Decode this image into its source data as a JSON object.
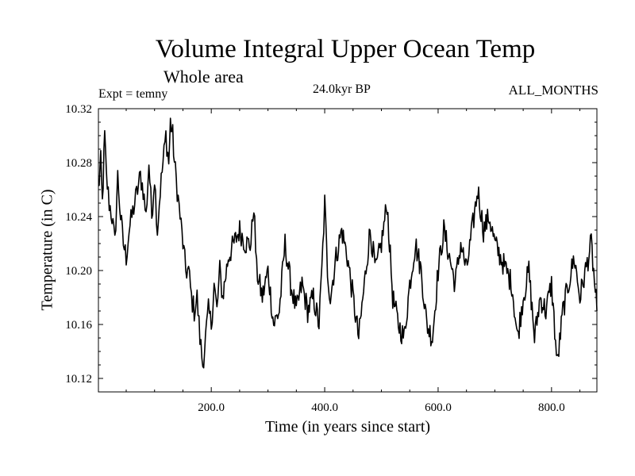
{
  "chart_data": {
    "type": "line",
    "title": "Volume Integral Upper Ocean Temp",
    "subtitle": "Whole area",
    "expt_label": "Expt = temny",
    "period_label": "24.0kyr BP",
    "months_label": "ALL_MONTHS",
    "xlabel": "Time (in years since start)",
    "ylabel": "Temperature (in C)",
    "xlim": [
      1,
      880
    ],
    "ylim": [
      10.11,
      10.32
    ],
    "xticks": [
      200,
      400,
      600,
      800
    ],
    "xtick_labels": [
      "200.0",
      "400.0",
      "600.0",
      "800.0"
    ],
    "yticks": [
      10.12,
      10.16,
      10.2,
      10.24,
      10.28,
      10.32
    ],
    "ytick_labels": [
      "10.12",
      "10.16",
      "10.20",
      "10.24",
      "10.28",
      "10.32"
    ],
    "line_color": "#000000",
    "anchors": [
      [
        1,
        10.26
      ],
      [
        5,
        10.28
      ],
      [
        8,
        10.25
      ],
      [
        12,
        10.3
      ],
      [
        15,
        10.27
      ],
      [
        20,
        10.25
      ],
      [
        25,
        10.24
      ],
      [
        30,
        10.22
      ],
      [
        35,
        10.27
      ],
      [
        40,
        10.24
      ],
      [
        45,
        10.22
      ],
      [
        50,
        10.21
      ],
      [
        55,
        10.23
      ],
      [
        60,
        10.24
      ],
      [
        65,
        10.25
      ],
      [
        70,
        10.26
      ],
      [
        75,
        10.27
      ],
      [
        80,
        10.26
      ],
      [
        85,
        10.24
      ],
      [
        90,
        10.28
      ],
      [
        95,
        10.24
      ],
      [
        100,
        10.27
      ],
      [
        105,
        10.23
      ],
      [
        110,
        10.26
      ],
      [
        115,
        10.28
      ],
      [
        120,
        10.3
      ],
      [
        125,
        10.28
      ],
      [
        128,
        10.31
      ],
      [
        132,
        10.3
      ],
      [
        135,
        10.28
      ],
      [
        140,
        10.26
      ],
      [
        145,
        10.24
      ],
      [
        150,
        10.22
      ],
      [
        155,
        10.2
      ],
      [
        160,
        10.2
      ],
      [
        165,
        10.18
      ],
      [
        170,
        10.17
      ],
      [
        175,
        10.18
      ],
      [
        180,
        10.15
      ],
      [
        185,
        10.13
      ],
      [
        190,
        10.15
      ],
      [
        195,
        10.17
      ],
      [
        200,
        10.16
      ],
      [
        205,
        10.19
      ],
      [
        210,
        10.17
      ],
      [
        215,
        10.2
      ],
      [
        220,
        10.18
      ],
      [
        230,
        10.21
      ],
      [
        240,
        10.22
      ],
      [
        250,
        10.23
      ],
      [
        260,
        10.22
      ],
      [
        270,
        10.22
      ],
      [
        275,
        10.25
      ],
      [
        280,
        10.2
      ],
      [
        290,
        10.18
      ],
      [
        300,
        10.2
      ],
      [
        310,
        10.16
      ],
      [
        320,
        10.17
      ],
      [
        330,
        10.22
      ],
      [
        340,
        10.19
      ],
      [
        350,
        10.17
      ],
      [
        360,
        10.19
      ],
      [
        370,
        10.17
      ],
      [
        380,
        10.18
      ],
      [
        390,
        10.16
      ],
      [
        395,
        10.2
      ],
      [
        400,
        10.25
      ],
      [
        405,
        10.2
      ],
      [
        410,
        10.18
      ],
      [
        420,
        10.21
      ],
      [
        430,
        10.23
      ],
      [
        440,
        10.21
      ],
      [
        450,
        10.18
      ],
      [
        460,
        10.15
      ],
      [
        470,
        10.19
      ],
      [
        480,
        10.23
      ],
      [
        490,
        10.2
      ],
      [
        500,
        10.22
      ],
      [
        510,
        10.25
      ],
      [
        520,
        10.18
      ],
      [
        530,
        10.16
      ],
      [
        540,
        10.15
      ],
      [
        550,
        10.19
      ],
      [
        560,
        10.22
      ],
      [
        570,
        10.2
      ],
      [
        580,
        10.16
      ],
      [
        590,
        10.15
      ],
      [
        600,
        10.2
      ],
      [
        610,
        10.23
      ],
      [
        620,
        10.21
      ],
      [
        630,
        10.19
      ],
      [
        640,
        10.22
      ],
      [
        650,
        10.2
      ],
      [
        660,
        10.23
      ],
      [
        670,
        10.26
      ],
      [
        680,
        10.23
      ],
      [
        690,
        10.24
      ],
      [
        700,
        10.22
      ],
      [
        710,
        10.21
      ],
      [
        720,
        10.2
      ],
      [
        730,
        10.19
      ],
      [
        740,
        10.15
      ],
      [
        750,
        10.18
      ],
      [
        760,
        10.2
      ],
      [
        770,
        10.15
      ],
      [
        780,
        10.18
      ],
      [
        790,
        10.17
      ],
      [
        800,
        10.19
      ],
      [
        810,
        10.13
      ],
      [
        820,
        10.17
      ],
      [
        830,
        10.19
      ],
      [
        840,
        10.21
      ],
      [
        850,
        10.18
      ],
      [
        860,
        10.2
      ],
      [
        870,
        10.22
      ],
      [
        880,
        10.17
      ]
    ]
  }
}
